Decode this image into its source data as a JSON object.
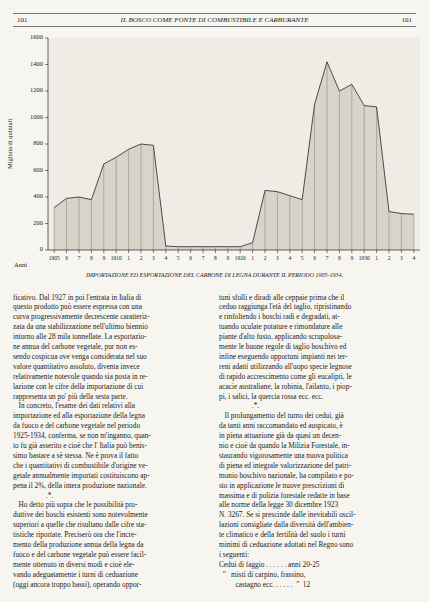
{
  "page": {
    "header": "IL BOSCO COME FONTE DI COMBUSTIBILE E CARBURANTE",
    "page_number": "101",
    "left_text": [
      "ficativo. Dal 1927 in poi l'entrata in Italia di",
      "questo prodotto può essere espressa con una",
      "curva progressivamente decrescente caratteriz-",
      "zata da una stabilizzazione nell'ultimo biennio",
      "intorno alle 28 mila tonnellate. La esportazio-",
      "ne annua del carbone vegetale, pur non es-",
      "sendo cospicua ove venga considerata nel suo",
      "valore quantitativo assoluto, diventa invece",
      "relativamente notevole quando sia posta in re-",
      "lazione con le cifre della importazione di cui",
      "rappresenta un po' più della sesta parte.",
      "   In concreto, l'esame dei dati relativi alla",
      "importazione ed alla esportazione della legna",
      "da fuoco e del carbone vegetale nel periodo",
      "1925-1934, conferma, se non m'inganno, quan-",
      "to fu già asserito e cioè che l' Italia può benis-",
      "simo bastare a sè stessa. Ne è prova il fatto",
      "che i quantitativi di combustibile d'origine ve-",
      "getale annualmente importati costituiscono ap-",
      "pena il 2%, della intera produzione nazionale.",
      "                  .*.",
      "   Ho detto più sopra che le possibilità pro-",
      "duttive dei boschi esistenti sono notevolmente",
      "superiori a quelle che risultano dalle cifre sta-",
      "tistiche riportate. Preciserò ora che l'incre-",
      "mento della produzione annua della legna da",
      "fuoco e del carbone vegetale può essere facil-",
      "mente ottenuto in diversi modi e cioè ele-",
      "vando adeguatamente i turni di ceduazione",
      "(oggi ancora troppo bassi), operando oppor-"
    ],
    "right_text": [
      "tuni sfolli e diradi alle ceppaie prima che il",
      "ceduo raggiunga l'età del taglio, ripristinando",
      "e rinfoltendo i boschi radi e degradati, at-",
      "tuando oculate potature e rimondature alle",
      "piante d'alto fusto, applicando scrupolosa-",
      "mente le buone regole di taglio boschivo ed",
      "infine eseguendo opportuni impianti nei ter-",
      "reni adatti utilizzando all'uopo specie legnose",
      "di rapido accrescimento come gli eucalipti, le",
      "acacie australiane, la robinia, l'ailanto, i piop-",
      "pi, i salici, la quercia rossa ecc. ecc.",
      "                  .*.",
      "   Il prolungamento del turno dei cedui, già",
      "da tanti anni raccomandato ed auspicato, è",
      "in piena attuazione già da quasi un decen-",
      "nio e cioè da quando la Milizia Forestale, in-",
      "staurando vigorosamente una nuova politica",
      "di piena ed integrale valorizzazione del patri-",
      "monio boschivo nazionale, ha compilato e po-",
      "sto in applicazione le nuove prescrizioni di",
      "massima e di polizia forestale redatte in base",
      "alle norme della legge 30 dicembre 1923",
      "N. 3267. Se si prescinde dalle inevitabili oscil-",
      "lazioni consigliate dalla diversità dell'ambien-",
      "te climatico e della fertilità del suolo i turni",
      "minimi di ceduazione adottati nel Regno sono",
      "i seguenti:",
      "Cedui di faggio . . . . . . anni 20-25",
      "  \"   misti di carpino, frassino,",
      "         castagno ecc. . . . . .  \"  12"
    ]
  },
  "chart_data": {
    "type": "area",
    "title": "IMPORTAZIONE ED ESPORTAZIONE DEL CARBONE DI LEGNA DURANTE IL PERIODO 1905-1934.",
    "x_label": "Anni",
    "y_label": "Migliaia di quintali",
    "categories": [
      "1905",
      "6",
      "7",
      "8",
      "9",
      "1910",
      "1",
      "2",
      "3",
      "4",
      "5",
      "6",
      "7",
      "8",
      "9",
      "1920",
      "1",
      "2",
      "3",
      "4",
      "5",
      "6",
      "7",
      "8",
      "9",
      "1930",
      "1",
      "2",
      "3",
      "4"
    ],
    "values": [
      320,
      390,
      400,
      380,
      650,
      700,
      760,
      800,
      790,
      30,
      25,
      25,
      25,
      25,
      25,
      25,
      55,
      450,
      440,
      410,
      380,
      1100,
      1420,
      1200,
      1250,
      1090,
      1080,
      290,
      275,
      270
    ],
    "ylim": [
      0,
      1600
    ],
    "yticks": [
      0,
      200,
      400,
      600,
      800,
      1000,
      1200,
      1400,
      1600
    ],
    "grid": false
  }
}
